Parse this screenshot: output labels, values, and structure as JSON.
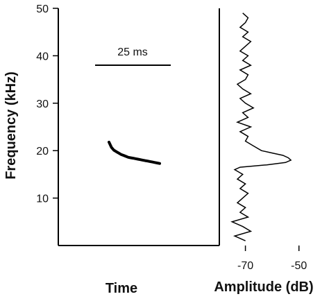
{
  "chart_data": {
    "type": "line",
    "title": "",
    "panels": [
      {
        "id": "spectrogram",
        "xlabel": "Time",
        "ylabel": "Frequency (kHz)",
        "ylim": [
          0,
          50
        ],
        "y_ticks": [
          10,
          20,
          30,
          40,
          50
        ],
        "scale_bar": {
          "label": "25 ms",
          "length_ms": 25
        },
        "series": [
          {
            "t_ms": [
              0,
              1,
              2,
              3,
              4,
              5,
              6,
              7,
              8,
              9,
              10,
              11,
              12,
              13,
              14,
              15,
              16,
              17,
              18,
              19,
              20,
              21
            ],
            "freq_khz": [
              21.8,
              20.7,
              20.1,
              19.8,
              19.5,
              19.2,
              19.0,
              18.8,
              18.6,
              18.5,
              18.4,
              18.3,
              18.2,
              18.1,
              18.0,
              17.9,
              17.8,
              17.7,
              17.6,
              17.5,
              17.4,
              17.3
            ]
          }
        ]
      },
      {
        "id": "power-spectrum",
        "xlabel": "Amplitude (dB)",
        "xlim": [
          -80,
          -45
        ],
        "x_ticks": [
          -70,
          -50
        ],
        "series": [
          {
            "freq_khz": [
              1,
              2,
              3,
              4,
              5,
              6,
              7,
              8,
              9,
              10,
              11,
              12,
              13,
              14,
              15,
              16,
              16.5,
              17,
              17.5,
              18,
              18.5,
              19,
              19.5,
              20,
              21,
              22,
              23,
              24,
              25,
              26,
              27,
              28,
              29,
              30,
              31,
              32,
              33,
              34,
              35,
              36,
              37,
              38,
              39,
              40,
              41,
              42,
              43,
              44,
              45,
              46,
              47,
              48,
              49
            ],
            "amplitude_db": [
              -70,
              -74,
              -68,
              -71,
              -75,
              -69,
              -72,
              -70,
              -73,
              -71,
              -69,
              -72,
              -70,
              -73,
              -71,
              -74,
              -72,
              -62,
              -55,
              -53,
              -54,
              -56,
              -60,
              -64,
              -67,
              -70,
              -69,
              -72,
              -68,
              -73,
              -69,
              -71,
              -67,
              -70,
              -72,
              -68,
              -71,
              -73,
              -70,
              -69,
              -72,
              -68,
              -71,
              -69,
              -72,
              -70,
              -68,
              -71,
              -69,
              -72,
              -70,
              -69,
              -71
            ]
          }
        ]
      }
    ]
  }
}
